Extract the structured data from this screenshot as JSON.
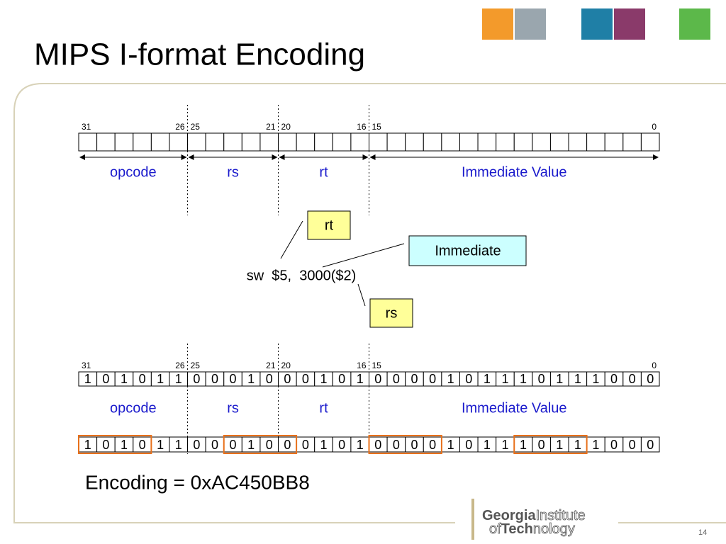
{
  "title": "MIPS I-format Encoding",
  "format": {
    "bit_positions": [
      "31",
      "26",
      "25",
      "21",
      "20",
      "16",
      "15",
      "0"
    ],
    "fields": [
      "opcode",
      "rs",
      "rt",
      "Immediate Value"
    ]
  },
  "instruction": {
    "text": "sw  $5,  3000($2)",
    "callouts": [
      "rt",
      "Immediate",
      "rs"
    ]
  },
  "encoded": {
    "bit_positions": [
      "31",
      "26",
      "25",
      "21",
      "20",
      "16",
      "15",
      "0"
    ],
    "bits": [
      "1",
      "0",
      "1",
      "0",
      "1",
      "1",
      "0",
      "0",
      "0",
      "1",
      "0",
      "0",
      "0",
      "1",
      "0",
      "1",
      "0",
      "0",
      "0",
      "0",
      "1",
      "0",
      "1",
      "1",
      "1",
      "0",
      "1",
      "1",
      "1",
      "0",
      "0",
      "0"
    ],
    "fields": [
      "opcode",
      "rs",
      "rt",
      "Immediate Value"
    ]
  },
  "grouped_bits": [
    "1",
    "0",
    "1",
    "0",
    "1",
    "1",
    "0",
    "0",
    "0",
    "1",
    "0",
    "0",
    "0",
    "1",
    "0",
    "1",
    "0",
    "0",
    "0",
    "0",
    "1",
    "0",
    "1",
    "1",
    "1",
    "0",
    "1",
    "1",
    "1",
    "0",
    "0",
    "0"
  ],
  "encoding": "Encoding = 0xAC450BB8",
  "page_number": "14",
  "logo": {
    "line1_bold": "Georgia",
    "line1": "Institute",
    "line2": "of",
    "line2_bold": "Tech",
    "line2_end": "nology"
  }
}
